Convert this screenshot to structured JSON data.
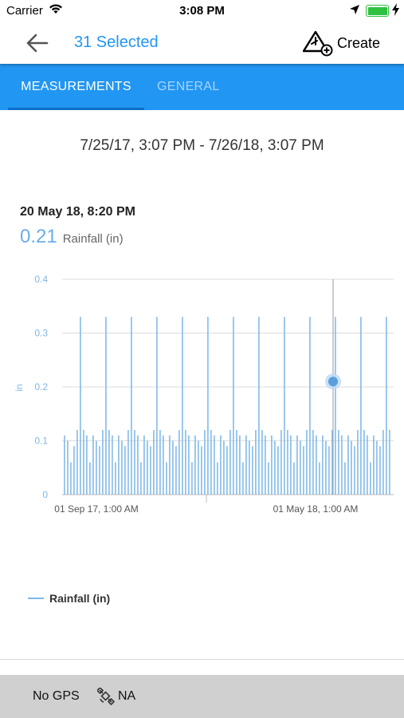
{
  "status_bar": {
    "carrier": "Carrier",
    "time": "3:08 PM"
  },
  "nav": {
    "title": "31 Selected",
    "create_label": "Create"
  },
  "tabs": [
    {
      "label": "MEASUREMENTS",
      "active": true
    },
    {
      "label": "GENERAL",
      "active": false
    }
  ],
  "date_range": "7/25/17, 3:07 PM - 7/26/18, 3:07 PM",
  "selection": {
    "date": "20 May 18, 8:20 PM",
    "value": "0.21",
    "unit_label": "Rainfall (in)"
  },
  "chart_data": {
    "type": "bar",
    "ylabel": "in",
    "ylim": [
      0,
      0.4
    ],
    "y_ticks": [
      "0",
      "0.1",
      "0.2",
      "0.3",
      "0.4"
    ],
    "x_tick_labels": [
      "01 Sep 17, 1:00 AM",
      "01 May 18, 1:00 AM"
    ],
    "series": [
      {
        "name": "Rainfall (in)",
        "color": "#7db7ea",
        "values": [
          0.11,
          0.1,
          0.06,
          0.09,
          0.12,
          0.33,
          0.12,
          0.11,
          0.06,
          0.11,
          0.1,
          0.09,
          0.12,
          0.33,
          0.12,
          0.11,
          0.06,
          0.11,
          0.1,
          0.09,
          0.12,
          0.33,
          0.12,
          0.11,
          0.06,
          0.11,
          0.1,
          0.09,
          0.12,
          0.33,
          0.12,
          0.11,
          0.06,
          0.11,
          0.1,
          0.09,
          0.12,
          0.33,
          0.12,
          0.11,
          0.06,
          0.11,
          0.1,
          0.09,
          0.12,
          0.33,
          0.12,
          0.11,
          0.06,
          0.11,
          0.1,
          0.09,
          0.12,
          0.33,
          0.12,
          0.11,
          0.06,
          0.11,
          0.1,
          0.09,
          0.12,
          0.33,
          0.12,
          0.11,
          0.06,
          0.11,
          0.1,
          0.09,
          0.12,
          0.33,
          0.12,
          0.11,
          0.06,
          0.11,
          0.1,
          0.09,
          0.12,
          0.33,
          0.12,
          0.11,
          0.06,
          0.11,
          0.1,
          0.09,
          0.12,
          0.33,
          0.12,
          0.11,
          0.06,
          0.11,
          0.1,
          0.09,
          0.12,
          0.33,
          0.12,
          0.11,
          0.06,
          0.11,
          0.1,
          0.09,
          0.12,
          0.33,
          0.12
        ]
      }
    ],
    "highlight": {
      "date": "20 May 18, 8:20 PM",
      "value": 0.21
    },
    "grid": true,
    "legend": "bottom-left"
  },
  "legend": {
    "label": "Rainfall (in)"
  },
  "footer": {
    "gps_label": "No GPS",
    "na_label": "NA"
  },
  "icons": {
    "back": "arrow-left-icon",
    "create": "map-pin-add-icon",
    "satellite": "satellite-icon"
  },
  "colors": {
    "accent": "#2196f3",
    "tab_inactive": "#a9d4fb",
    "chart_bar": "#7db7ea",
    "chart_point": "#5a9fdc"
  }
}
